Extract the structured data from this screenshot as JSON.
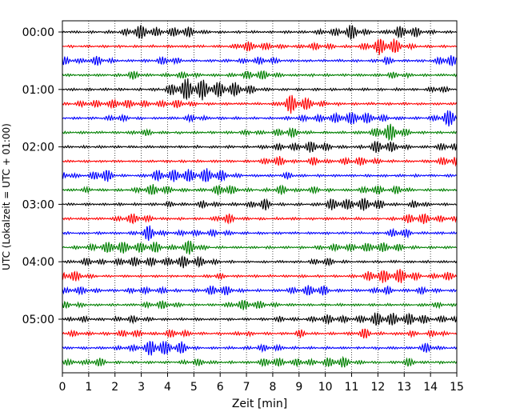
{
  "chart_data": {
    "type": "line",
    "title": "",
    "xlabel": "Zeit  [min]",
    "ylabel": "UTC (Lokalzeit = UTC + 01:00)",
    "xlim": [
      0,
      15
    ],
    "x_ticks": [
      0,
      1,
      2,
      3,
      4,
      5,
      6,
      7,
      8,
      9,
      10,
      11,
      12,
      13,
      14,
      15
    ],
    "x_tick_labels": [
      "0",
      "1",
      "2",
      "3",
      "4",
      "5",
      "6",
      "7",
      "8",
      "9",
      "10",
      "11",
      "12",
      "13",
      "14",
      "15"
    ],
    "y_tick_labels": [
      "00:00",
      "01:00",
      "02:00",
      "03:00",
      "04:00",
      "05:00"
    ],
    "y_tick_rows": [
      0,
      4,
      8,
      12,
      16,
      20
    ],
    "grid": "vertical dotted at each minute",
    "trace_colors": [
      "#000000",
      "#ff0000",
      "#0000ff",
      "#008000"
    ],
    "traces": [
      {
        "start": "00:00",
        "color": "#000000"
      },
      {
        "start": "00:15",
        "color": "#ff0000"
      },
      {
        "start": "00:30",
        "color": "#0000ff"
      },
      {
        "start": "00:45",
        "color": "#008000"
      },
      {
        "start": "01:00",
        "color": "#000000"
      },
      {
        "start": "01:15",
        "color": "#ff0000"
      },
      {
        "start": "01:30",
        "color": "#0000ff"
      },
      {
        "start": "01:45",
        "color": "#008000"
      },
      {
        "start": "02:00",
        "color": "#000000"
      },
      {
        "start": "02:15",
        "color": "#ff0000"
      },
      {
        "start": "02:30",
        "color": "#0000ff"
      },
      {
        "start": "02:45",
        "color": "#008000"
      },
      {
        "start": "03:00",
        "color": "#000000"
      },
      {
        "start": "03:15",
        "color": "#ff0000"
      },
      {
        "start": "03:30",
        "color": "#0000ff"
      },
      {
        "start": "03:45",
        "color": "#008000"
      },
      {
        "start": "04:00",
        "color": "#000000"
      },
      {
        "start": "04:15",
        "color": "#ff0000"
      },
      {
        "start": "04:30",
        "color": "#0000ff"
      },
      {
        "start": "04:45",
        "color": "#008000"
      },
      {
        "start": "05:00",
        "color": "#000000"
      },
      {
        "start": "05:15",
        "color": "#ff0000"
      },
      {
        "start": "05:30",
        "color": "#0000ff"
      },
      {
        "start": "05:45",
        "color": "#008000"
      }
    ]
  }
}
